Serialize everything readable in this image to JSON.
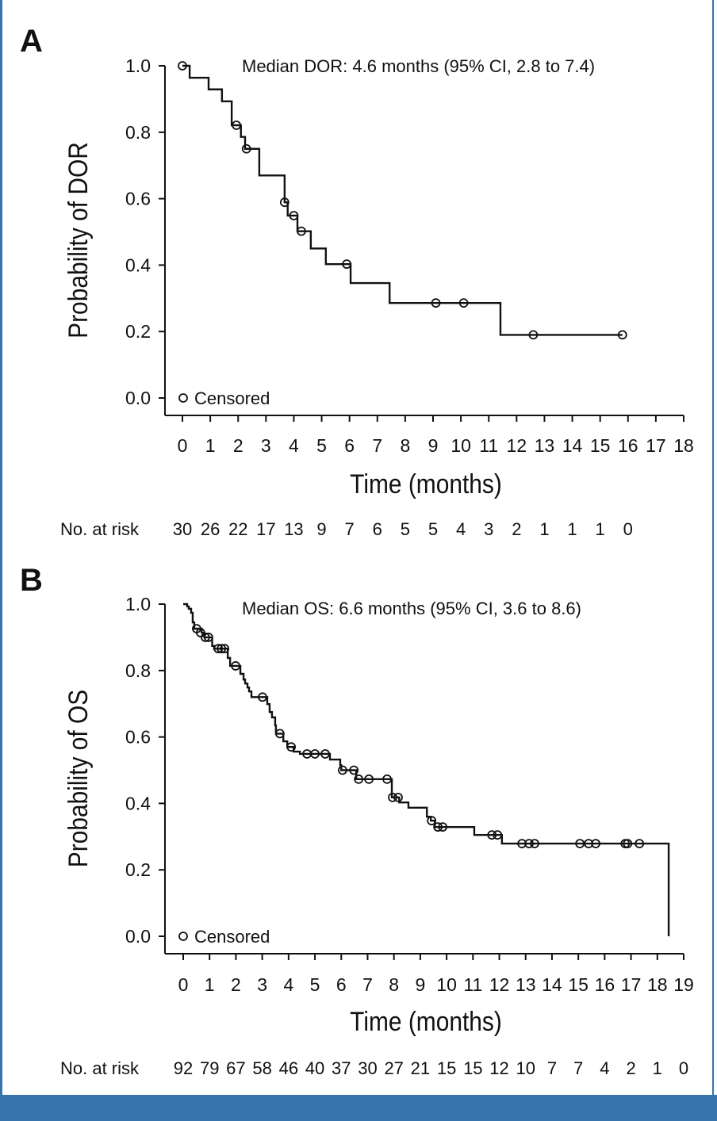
{
  "colors": {
    "frame": "#3674ab",
    "line": "#111111"
  },
  "chart_data": [
    {
      "panel_label": "A",
      "type": "line",
      "style": "kaplan-meier step curve",
      "annotation": "Median DOR: 4.6 months (95% CI, 2.8 to 7.4)",
      "xlabel": "Time (months)",
      "ylabel": "Probability of DOR",
      "xlim": [
        0,
        18
      ],
      "ylim": [
        0,
        1
      ],
      "xticks": [
        "0",
        "1",
        "2",
        "3",
        "4",
        "5",
        "6",
        "7",
        "8",
        "9",
        "10",
        "11",
        "12",
        "13",
        "14",
        "15",
        "16",
        "17",
        "18"
      ],
      "yticks": [
        "0.0",
        "0.2",
        "0.4",
        "0.6",
        "0.8",
        "1.0"
      ],
      "grid": false,
      "legend": {
        "label": "Censored",
        "marker": "open-circle",
        "placement": "bottom-left"
      },
      "steps": [
        [
          0,
          1
        ],
        [
          0.26,
          0.964
        ],
        [
          0.94,
          0.929
        ],
        [
          1.42,
          0.893
        ],
        [
          1.77,
          0.821
        ],
        [
          2.1,
          0.786
        ],
        [
          2.25,
          0.75
        ],
        [
          2.76,
          0.67
        ],
        [
          3.67,
          0.589
        ],
        [
          3.78,
          0.549
        ],
        [
          4.13,
          0.502
        ],
        [
          4.61,
          0.45
        ],
        [
          5.15,
          0.403
        ],
        [
          6.04,
          0.346
        ],
        [
          7.44,
          0.286
        ],
        [
          11.42,
          0.19
        ],
        [
          15.8,
          0.19
        ]
      ],
      "censored": [
        [
          0,
          1
        ],
        [
          1.94,
          0.821
        ],
        [
          2.3,
          0.75
        ],
        [
          3.67,
          0.589
        ],
        [
          4.0,
          0.549
        ],
        [
          4.27,
          0.502
        ],
        [
          5.9,
          0.403
        ],
        [
          9.1,
          0.286
        ],
        [
          10.1,
          0.286
        ],
        [
          12.6,
          0.19
        ],
        [
          15.8,
          0.19
        ]
      ],
      "risk_table": {
        "label": "No. at risk",
        "counts": [
          "30",
          "26",
          "22",
          "17",
          "13",
          "9",
          "7",
          "6",
          "5",
          "5",
          "4",
          "3",
          "2",
          "1",
          "1",
          "1",
          "0"
        ]
      }
    },
    {
      "panel_label": "B",
      "type": "line",
      "style": "kaplan-meier step curve",
      "annotation": "Median OS: 6.6 months (95% CI, 3.6 to 8.6)",
      "xlabel": "Time (months)",
      "ylabel": "Probability of OS",
      "xlim": [
        0,
        19
      ],
      "ylim": [
        0,
        1
      ],
      "xticks": [
        "0",
        "1",
        "2",
        "3",
        "4",
        "5",
        "6",
        "7",
        "8",
        "9",
        "10",
        "11",
        "12",
        "13",
        "14",
        "15",
        "16",
        "17",
        "18",
        "19"
      ],
      "yticks": [
        "0.0",
        "0.2",
        "0.4",
        "0.6",
        "0.8",
        "1.0"
      ],
      "grid": false,
      "legend": {
        "label": "Censored",
        "marker": "open-circle",
        "placement": "bottom-left"
      },
      "steps": [
        [
          0,
          1
        ],
        [
          0.15,
          0.993
        ],
        [
          0.21,
          0.986
        ],
        [
          0.3,
          0.974
        ],
        [
          0.36,
          0.945
        ],
        [
          0.42,
          0.926
        ],
        [
          0.7,
          0.914
        ],
        [
          0.8,
          0.9
        ],
        [
          1.1,
          0.874
        ],
        [
          1.17,
          0.866
        ],
        [
          1.69,
          0.838
        ],
        [
          1.78,
          0.814
        ],
        [
          2.17,
          0.79
        ],
        [
          2.29,
          0.773
        ],
        [
          2.35,
          0.761
        ],
        [
          2.44,
          0.749
        ],
        [
          2.5,
          0.737
        ],
        [
          2.59,
          0.72
        ],
        [
          3.19,
          0.699
        ],
        [
          3.28,
          0.675
        ],
        [
          3.37,
          0.659
        ],
        [
          3.49,
          0.635
        ],
        [
          3.52,
          0.61
        ],
        [
          3.8,
          0.587
        ],
        [
          3.95,
          0.57
        ],
        [
          4.19,
          0.556
        ],
        [
          4.43,
          0.549
        ],
        [
          5.57,
          0.532
        ],
        [
          5.96,
          0.515
        ],
        [
          6.0,
          0.5
        ],
        [
          6.57,
          0.473
        ],
        [
          7.92,
          0.418
        ],
        [
          8.2,
          0.403
        ],
        [
          8.55,
          0.387
        ],
        [
          9.25,
          0.36
        ],
        [
          9.4,
          0.348
        ],
        [
          9.55,
          0.329
        ],
        [
          11.05,
          0.305
        ],
        [
          12.1,
          0.279
        ],
        [
          18.43,
          0
        ]
      ],
      "censored": [
        [
          0.51,
          0.926
        ],
        [
          0.66,
          0.914
        ],
        [
          0.84,
          0.9
        ],
        [
          0.96,
          0.9
        ],
        [
          1.33,
          0.866
        ],
        [
          1.45,
          0.866
        ],
        [
          1.57,
          0.866
        ],
        [
          1.99,
          0.814
        ],
        [
          3.01,
          0.72
        ],
        [
          3.67,
          0.61
        ],
        [
          4.1,
          0.57
        ],
        [
          4.7,
          0.549
        ],
        [
          5.0,
          0.549
        ],
        [
          5.39,
          0.549
        ],
        [
          6.05,
          0.5
        ],
        [
          6.48,
          0.5
        ],
        [
          6.66,
          0.473
        ],
        [
          7.05,
          0.473
        ],
        [
          7.74,
          0.473
        ],
        [
          7.95,
          0.418
        ],
        [
          8.16,
          0.418
        ],
        [
          9.43,
          0.348
        ],
        [
          9.67,
          0.329
        ],
        [
          9.85,
          0.329
        ],
        [
          11.72,
          0.305
        ],
        [
          11.93,
          0.305
        ],
        [
          12.86,
          0.279
        ],
        [
          13.13,
          0.279
        ],
        [
          13.34,
          0.279
        ],
        [
          15.06,
          0.279
        ],
        [
          15.39,
          0.279
        ],
        [
          15.66,
          0.279
        ],
        [
          16.78,
          0.279
        ],
        [
          16.87,
          0.279
        ],
        [
          17.32,
          0.279
        ]
      ],
      "risk_table": {
        "label": "No. at risk",
        "counts": [
          "92",
          "79",
          "67",
          "58",
          "46",
          "40",
          "37",
          "30",
          "27",
          "21",
          "15",
          "15",
          "12",
          "10",
          "7",
          "7",
          "4",
          "2",
          "1",
          "0"
        ]
      }
    }
  ]
}
